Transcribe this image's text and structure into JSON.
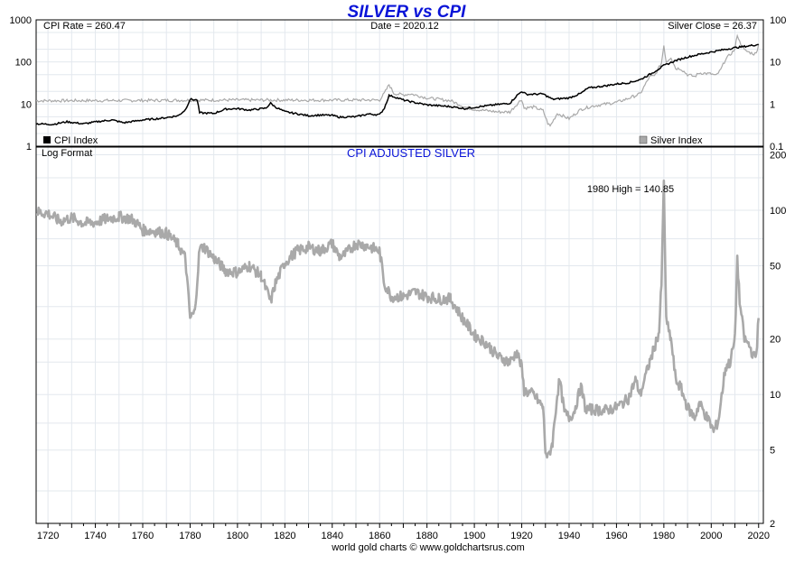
{
  "header": {
    "title": "SILVER vs CPI",
    "title_color": "#0a14d8"
  },
  "chart_data": [
    {
      "type": "line",
      "panel": "top",
      "title": "SILVER vs CPI",
      "y_scale": "log",
      "left_axis": {
        "series": "CPI Index",
        "ylim": [
          1,
          1000
        ],
        "ticks": [
          "1",
          "10",
          "100",
          "1000"
        ]
      },
      "right_axis": {
        "series": "Silver Index",
        "ylim": [
          0.1,
          100
        ],
        "ticks": [
          "0.1",
          "1",
          "10",
          "100"
        ]
      },
      "xlim": [
        1715,
        2022
      ],
      "grid": true,
      "legend_placement": "bottom",
      "annotations": {
        "cpi_rate": "CPI Rate = 260.47",
        "date": "Date = 2020.12",
        "silver_close": "Silver Close = 26.37"
      },
      "series": [
        {
          "name": "CPI Index",
          "color": "#000000",
          "axis": "left",
          "points": [
            [
              1715,
              3.4
            ],
            [
              1722,
              3.3
            ],
            [
              1728,
              3.8
            ],
            [
              1735,
              3.4
            ],
            [
              1742,
              3.9
            ],
            [
              1747,
              4.2
            ],
            [
              1752,
              3.6
            ],
            [
              1760,
              4.2
            ],
            [
              1768,
              4.6
            ],
            [
              1775,
              5.3
            ],
            [
              1778,
              7.3
            ],
            [
              1780,
              13
            ],
            [
              1783,
              12.5
            ],
            [
              1784,
              6.2
            ],
            [
              1790,
              6.0
            ],
            [
              1795,
              7.6
            ],
            [
              1800,
              7.8
            ],
            [
              1805,
              7.2
            ],
            [
              1812,
              8.0
            ],
            [
              1814,
              10.5
            ],
            [
              1816,
              8.5
            ],
            [
              1820,
              6.6
            ],
            [
              1825,
              5.9
            ],
            [
              1830,
              5.3
            ],
            [
              1835,
              5.5
            ],
            [
              1840,
              5.4
            ],
            [
              1843,
              4.9
            ],
            [
              1850,
              5.0
            ],
            [
              1855,
              5.8
            ],
            [
              1860,
              5.6
            ],
            [
              1862,
              8.0
            ],
            [
              1864,
              16
            ],
            [
              1866,
              15
            ],
            [
              1870,
              12.5
            ],
            [
              1875,
              10.8
            ],
            [
              1880,
              9.6
            ],
            [
              1890,
              8.7
            ],
            [
              1896,
              7.8
            ],
            [
              1900,
              8.4
            ],
            [
              1910,
              9.8
            ],
            [
              1915,
              10.5
            ],
            [
              1918,
              16
            ],
            [
              1920,
              20
            ],
            [
              1922,
              17
            ],
            [
              1929,
              17.4
            ],
            [
              1933,
              13
            ],
            [
              1940,
              14
            ],
            [
              1945,
              18
            ],
            [
              1948,
              24
            ],
            [
              1955,
              27
            ],
            [
              1960,
              30
            ],
            [
              1965,
              32
            ],
            [
              1970,
              38
            ],
            [
              1975,
              54
            ],
            [
              1980,
              82
            ],
            [
              1985,
              108
            ],
            [
              1990,
              131
            ],
            [
              1995,
              152
            ],
            [
              2000,
              172
            ],
            [
              2005,
              195
            ],
            [
              2010,
              218
            ],
            [
              2015,
              237
            ],
            [
              2020,
              260.47
            ]
          ]
        },
        {
          "name": "Silver Index",
          "color": "#a9a9a9",
          "axis": "right",
          "points": [
            [
              1715,
              1.2
            ],
            [
              1760,
              1.22
            ],
            [
              1800,
              1.25
            ],
            [
              1830,
              1.24
            ],
            [
              1860,
              1.25
            ],
            [
              1862,
              1.8
            ],
            [
              1864,
              2.9
            ],
            [
              1866,
              1.8
            ],
            [
              1870,
              1.65
            ],
            [
              1873,
              1.75
            ],
            [
              1880,
              1.4
            ],
            [
              1890,
              1.2
            ],
            [
              1896,
              0.85
            ],
            [
              1900,
              0.75
            ],
            [
              1905,
              0.7
            ],
            [
              1910,
              0.65
            ],
            [
              1915,
              0.65
            ],
            [
              1919,
              1.15
            ],
            [
              1920,
              1.3
            ],
            [
              1921,
              0.8
            ],
            [
              1925,
              0.85
            ],
            [
              1929,
              0.7
            ],
            [
              1931,
              0.35
            ],
            [
              1932,
              0.3
            ],
            [
              1935,
              0.6
            ],
            [
              1940,
              0.45
            ],
            [
              1945,
              0.75
            ],
            [
              1950,
              0.9
            ],
            [
              1960,
              1.1
            ],
            [
              1964,
              1.3
            ],
            [
              1970,
              1.75
            ],
            [
              1974,
              4.5
            ],
            [
              1976,
              4.6
            ],
            [
              1979,
              9.5
            ],
            [
              1980,
              25
            ],
            [
              1981,
              10
            ],
            [
              1983,
              13
            ],
            [
              1985,
              7
            ],
            [
              1987,
              7
            ],
            [
              1990,
              5
            ],
            [
              1993,
              4.5
            ],
            [
              1995,
              5.5
            ],
            [
              2000,
              5.2
            ],
            [
              2002,
              4.7
            ],
            [
              2004,
              6.5
            ],
            [
              2006,
              11.5
            ],
            [
              2008,
              15
            ],
            [
              2010,
              20
            ],
            [
              2011,
              45
            ],
            [
              2012,
              30
            ],
            [
              2014,
              19
            ],
            [
              2016,
              17
            ],
            [
              2018,
              15.5
            ],
            [
              2019,
              16
            ],
            [
              2020,
              26.37
            ]
          ]
        }
      ]
    },
    {
      "type": "line",
      "panel": "bottom",
      "title": "CPI ADJUSTED SILVER",
      "title_color": "#0a14d8",
      "y_scale": "log",
      "scale_note": "Log Format",
      "ylim": [
        2,
        220
      ],
      "right_ticks": [
        "2",
        "5",
        "10",
        "20",
        "50",
        "100",
        "200"
      ],
      "xlim": [
        1715,
        2022
      ],
      "x_ticks": [
        "1720",
        "1740",
        "1760",
        "1780",
        "1800",
        "1820",
        "1840",
        "1860",
        "1880",
        "1900",
        "1920",
        "1940",
        "1960",
        "1980",
        "2000",
        "2020"
      ],
      "grid": true,
      "annotation": "1980 High = 140.85",
      "series": [
        {
          "name": "CPI Adjusted Silver",
          "color": "#a9a9a9",
          "points": [
            [
              1715,
              98
            ],
            [
              1720,
              96
            ],
            [
              1725,
              87
            ],
            [
              1730,
              91
            ],
            [
              1735,
              85
            ],
            [
              1740,
              86
            ],
            [
              1745,
              90
            ],
            [
              1750,
              92
            ],
            [
              1755,
              90
            ],
            [
              1758,
              84
            ],
            [
              1760,
              78
            ],
            [
              1765,
              77
            ],
            [
              1770,
              75
            ],
            [
              1775,
              65
            ],
            [
              1778,
              55
            ],
            [
              1780,
              26
            ],
            [
              1782,
              28
            ],
            [
              1784,
              62
            ],
            [
              1786,
              63
            ],
            [
              1790,
              55
            ],
            [
              1795,
              47
            ],
            [
              1800,
              46
            ],
            [
              1805,
              50
            ],
            [
              1810,
              44
            ],
            [
              1814,
              32
            ],
            [
              1816,
              40
            ],
            [
              1820,
              52
            ],
            [
              1825,
              60
            ],
            [
              1830,
              63
            ],
            [
              1835,
              60
            ],
            [
              1840,
              66
            ],
            [
              1843,
              56
            ],
            [
              1845,
              57
            ],
            [
              1850,
              66
            ],
            [
              1855,
              64
            ],
            [
              1860,
              60
            ],
            [
              1862,
              40
            ],
            [
              1865,
              34
            ],
            [
              1870,
              34
            ],
            [
              1875,
              36
            ],
            [
              1880,
              34
            ],
            [
              1885,
              33
            ],
            [
              1890,
              33
            ],
            [
              1895,
              26
            ],
            [
              1900,
              21
            ],
            [
              1905,
              19
            ],
            [
              1910,
              16
            ],
            [
              1915,
              15
            ],
            [
              1918,
              17
            ],
            [
              1920,
              14
            ],
            [
              1921,
              10.5
            ],
            [
              1925,
              10
            ],
            [
              1929,
              8.5
            ],
            [
              1930,
              5
            ],
            [
              1931,
              4.5
            ],
            [
              1933,
              5.5
            ],
            [
              1935,
              10
            ],
            [
              1936,
              12
            ],
            [
              1938,
              8
            ],
            [
              1940,
              7.5
            ],
            [
              1942,
              8
            ],
            [
              1945,
              11
            ],
            [
              1947,
              8.3
            ],
            [
              1950,
              8.3
            ],
            [
              1955,
              8.2
            ],
            [
              1960,
              8.5
            ],
            [
              1965,
              9.5
            ],
            [
              1968,
              12
            ],
            [
              1970,
              10
            ],
            [
              1974,
              15
            ],
            [
              1976,
              18
            ],
            [
              1978,
              22
            ],
            [
              1979,
              40
            ],
            [
              1980,
              140.85
            ],
            [
              1981,
              25
            ],
            [
              1983,
              20
            ],
            [
              1985,
              12
            ],
            [
              1987,
              11
            ],
            [
              1990,
              8.5
            ],
            [
              1993,
              7.5
            ],
            [
              1995,
              9
            ],
            [
              1997,
              8
            ],
            [
              2000,
              6.8
            ],
            [
              2001,
              6.3
            ],
            [
              2003,
              7.2
            ],
            [
              2006,
              14
            ],
            [
              2008,
              15
            ],
            [
              2010,
              20
            ],
            [
              2011,
              55
            ],
            [
              2012,
              32
            ],
            [
              2014,
              20
            ],
            [
              2016,
              18.5
            ],
            [
              2018,
              16
            ],
            [
              2019,
              16.5
            ],
            [
              2020,
              26
            ]
          ]
        }
      ]
    }
  ],
  "legend": {
    "cpi_label": "CPI Index",
    "silver_label": "Silver Index"
  },
  "footer": {
    "credit": "world gold charts © www.goldchartsrus.com"
  }
}
